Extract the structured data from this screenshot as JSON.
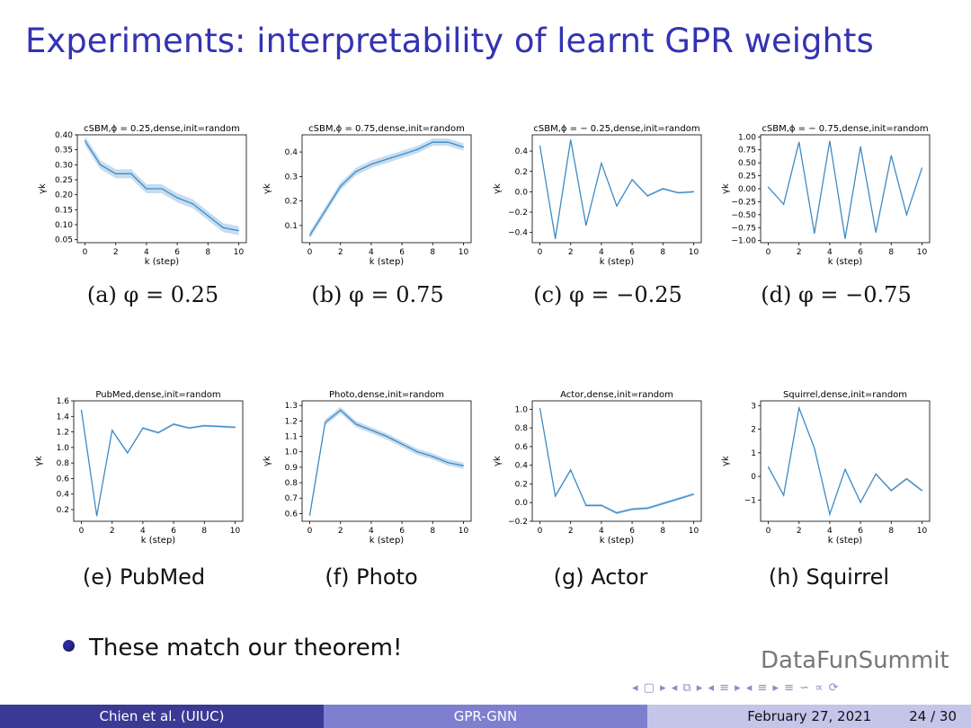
{
  "slide": {
    "title": "Experiments: interpretability of learnt GPR weights",
    "bullet": "These match our theorem!",
    "watermark": "DataFunSummit",
    "nav_symbols": "◂ ▢ ▸ ◂ ⧉ ▸ ◂ ≡ ▸ ◂ ≡ ▸   ≡   ∽ ∝ ⟳"
  },
  "footer": {
    "author": "Chien et al.  (UIUC)",
    "short_title": "GPR-GNN",
    "date": "February 27, 2021",
    "page": "24 / 30"
  },
  "captions": [
    "(a) φ = 0.25",
    "(b) φ = 0.75",
    "(c) φ = −0.25",
    "(d) φ = −0.75",
    "(e) PubMed",
    "(f) Photo",
    "(g) Actor",
    "(h) Squirrel"
  ],
  "colors": {
    "line": "#3d8bc4",
    "band": "#c6dcf0",
    "title_blue": "#3333b3"
  },
  "chart_data": [
    {
      "type": "line",
      "title": "cSBM,ϕ = 0.25,dense,init=random",
      "xlabel": "k (step)",
      "ylabel": "γk",
      "x": [
        0,
        1,
        2,
        3,
        4,
        5,
        6,
        7,
        8,
        9,
        10
      ],
      "values": [
        0.38,
        0.3,
        0.27,
        0.27,
        0.22,
        0.22,
        0.19,
        0.17,
        0.13,
        0.09,
        0.08
      ],
      "band": 0.015,
      "ylim": [
        0.04,
        0.4
      ],
      "xticks": [
        0,
        2,
        4,
        6,
        8,
        10
      ],
      "yticks": [
        0.05,
        0.1,
        0.15,
        0.2,
        0.25,
        0.3,
        0.35,
        0.4
      ],
      "yticklabels": [
        "0.05",
        "0.10",
        "0.15",
        "0.20",
        "0.25",
        "0.30",
        "0.35",
        "0.40"
      ]
    },
    {
      "type": "line",
      "title": "cSBM,ϕ = 0.75,dense,init=random",
      "xlabel": "k (step)",
      "ylabel": "γk",
      "x": [
        0,
        1,
        2,
        3,
        4,
        5,
        6,
        7,
        8,
        9,
        10
      ],
      "values": [
        0.06,
        0.16,
        0.26,
        0.32,
        0.35,
        0.37,
        0.39,
        0.41,
        0.44,
        0.44,
        0.42
      ],
      "band": 0.015,
      "ylim": [
        0.03,
        0.47
      ],
      "xticks": [
        0,
        2,
        4,
        6,
        8,
        10
      ],
      "yticks": [
        0.1,
        0.2,
        0.3,
        0.4
      ],
      "yticklabels": [
        "0.1",
        "0.2",
        "0.3",
        "0.4"
      ]
    },
    {
      "type": "line",
      "title": "cSBM,ϕ = − 0.25,dense,init=random",
      "xlabel": "k (step)",
      "ylabel": "γk",
      "x": [
        0,
        1,
        2,
        3,
        4,
        5,
        6,
        7,
        8,
        9,
        10
      ],
      "values": [
        0.45,
        -0.46,
        0.51,
        -0.33,
        0.28,
        -0.14,
        0.12,
        -0.04,
        0.03,
        -0.01,
        0.0
      ],
      "band": 0.01,
      "ylim": [
        -0.5,
        0.56
      ],
      "xticks": [
        0,
        2,
        4,
        6,
        8,
        10
      ],
      "yticks": [
        -0.4,
        -0.2,
        0.0,
        0.2,
        0.4
      ],
      "yticklabels": [
        "−0.4",
        "−0.2",
        "0.0",
        "0.2",
        "0.4"
      ]
    },
    {
      "type": "line",
      "title": "cSBM,ϕ = − 0.75,dense,init=random",
      "xlabel": "k (step)",
      "ylabel": "γk",
      "x": [
        0,
        1,
        2,
        3,
        4,
        5,
        6,
        7,
        8,
        9,
        10
      ],
      "values": [
        0.03,
        -0.3,
        0.9,
        -0.86,
        0.92,
        -0.96,
        0.81,
        -0.84,
        0.64,
        -0.5,
        0.4
      ],
      "band": 0.005,
      "ylim": [
        -1.04,
        1.04
      ],
      "xticks": [
        0,
        2,
        4,
        6,
        8,
        10
      ],
      "yticks": [
        -1.0,
        -0.75,
        -0.5,
        -0.25,
        0.0,
        0.25,
        0.5,
        0.75,
        1.0
      ],
      "yticklabels": [
        "−1.00",
        "−0.75",
        "−0.50",
        "−0.25",
        "0.00",
        "0.25",
        "0.50",
        "0.75",
        "1.00"
      ]
    },
    {
      "type": "line",
      "title": "PubMed,dense,init=random",
      "xlabel": "k (step)",
      "ylabel": "γk",
      "x": [
        0,
        1,
        2,
        3,
        4,
        5,
        6,
        7,
        8,
        9,
        10
      ],
      "values": [
        1.48,
        0.12,
        1.22,
        0.93,
        1.25,
        1.19,
        1.3,
        1.25,
        1.28,
        1.27,
        1.26
      ],
      "band": 0.015,
      "ylim": [
        0.05,
        1.6
      ],
      "xticks": [
        0,
        2,
        4,
        6,
        8,
        10
      ],
      "yticks": [
        0.2,
        0.4,
        0.6,
        0.8,
        1.0,
        1.2,
        1.4,
        1.6
      ],
      "yticklabels": [
        "0.2",
        "0.4",
        "0.6",
        "0.8",
        "1.0",
        "1.2",
        "1.4",
        "1.6"
      ]
    },
    {
      "type": "line",
      "title": "Photo,dense,init=random",
      "xlabel": "k (step)",
      "ylabel": "γk",
      "x": [
        0,
        1,
        2,
        3,
        4,
        5,
        6,
        7,
        8,
        9,
        10
      ],
      "values": [
        0.59,
        1.19,
        1.27,
        1.18,
        1.14,
        1.1,
        1.05,
        1.0,
        0.97,
        0.93,
        0.91
      ],
      "band": 0.02,
      "ylim": [
        0.55,
        1.33
      ],
      "xticks": [
        0,
        2,
        4,
        6,
        8,
        10
      ],
      "yticks": [
        0.6,
        0.7,
        0.8,
        0.9,
        1.0,
        1.1,
        1.2,
        1.3
      ],
      "yticklabels": [
        "0.6",
        "0.7",
        "0.8",
        "0.9",
        "1.0",
        "1.1",
        "1.2",
        "1.3"
      ]
    },
    {
      "type": "line",
      "title": "Actor,dense,init=random",
      "xlabel": "k (step)",
      "ylabel": "γk",
      "x": [
        0,
        1,
        2,
        3,
        4,
        5,
        6,
        7,
        8,
        9,
        10
      ],
      "values": [
        1.01,
        0.07,
        0.35,
        -0.03,
        -0.03,
        -0.11,
        -0.07,
        -0.06,
        -0.01,
        0.04,
        0.09
      ],
      "band": 0.015,
      "ylim": [
        -0.2,
        1.09
      ],
      "xticks": [
        0,
        2,
        4,
        6,
        8,
        10
      ],
      "yticks": [
        -0.2,
        0.0,
        0.2,
        0.4,
        0.6,
        0.8,
        1.0
      ],
      "yticklabels": [
        "−0.2",
        "0.0",
        "0.2",
        "0.4",
        "0.6",
        "0.8",
        "1.0"
      ]
    },
    {
      "type": "line",
      "title": "Squirrel,dense,init=random",
      "xlabel": "k (step)",
      "ylabel": "γk",
      "x": [
        0,
        1,
        2,
        3,
        4,
        5,
        6,
        7,
        8,
        9,
        10
      ],
      "values": [
        0.4,
        -0.8,
        2.9,
        1.2,
        -1.6,
        0.3,
        -1.1,
        0.1,
        -0.6,
        -0.1,
        -0.6
      ],
      "band": 0.05,
      "ylim": [
        -1.9,
        3.2
      ],
      "xticks": [
        0,
        2,
        4,
        6,
        8,
        10
      ],
      "yticks": [
        -1,
        0,
        1,
        2,
        3
      ],
      "yticklabels": [
        "−1",
        "0",
        "1",
        "2",
        "3"
      ]
    }
  ]
}
